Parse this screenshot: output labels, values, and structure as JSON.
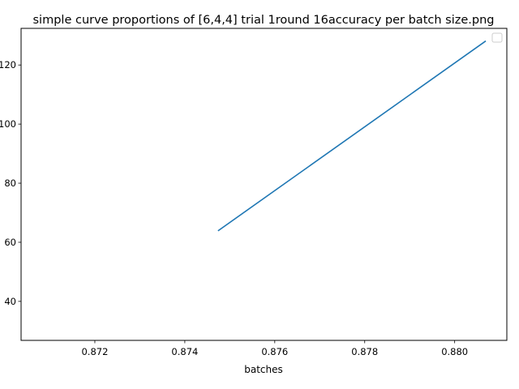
{
  "chart_data": {
    "type": "line",
    "title": "simple curve proportions of [6,4,4] trial 1round 16accuracy per batch size.png",
    "xlabel": "batches",
    "ylabel": "",
    "xlim": [
      0.87036,
      0.88116
    ],
    "ylim": [
      26.8,
      132.4
    ],
    "x_ticks": [
      "0.872",
      "0.874",
      "0.876",
      "0.878",
      "0.880"
    ],
    "x_tick_values": [
      0.872,
      0.874,
      0.876,
      0.878,
      0.88
    ],
    "y_ticks": [
      "40",
      "60",
      "80",
      "100",
      "120"
    ],
    "y_tick_values": [
      40,
      60,
      80,
      100,
      120
    ],
    "grid": false,
    "legend": "top-right",
    "series": [
      {
        "color": "#1f77b4",
        "x": [
          0.87475,
          0.88068
        ],
        "y": [
          64,
          128
        ]
      }
    ]
  }
}
